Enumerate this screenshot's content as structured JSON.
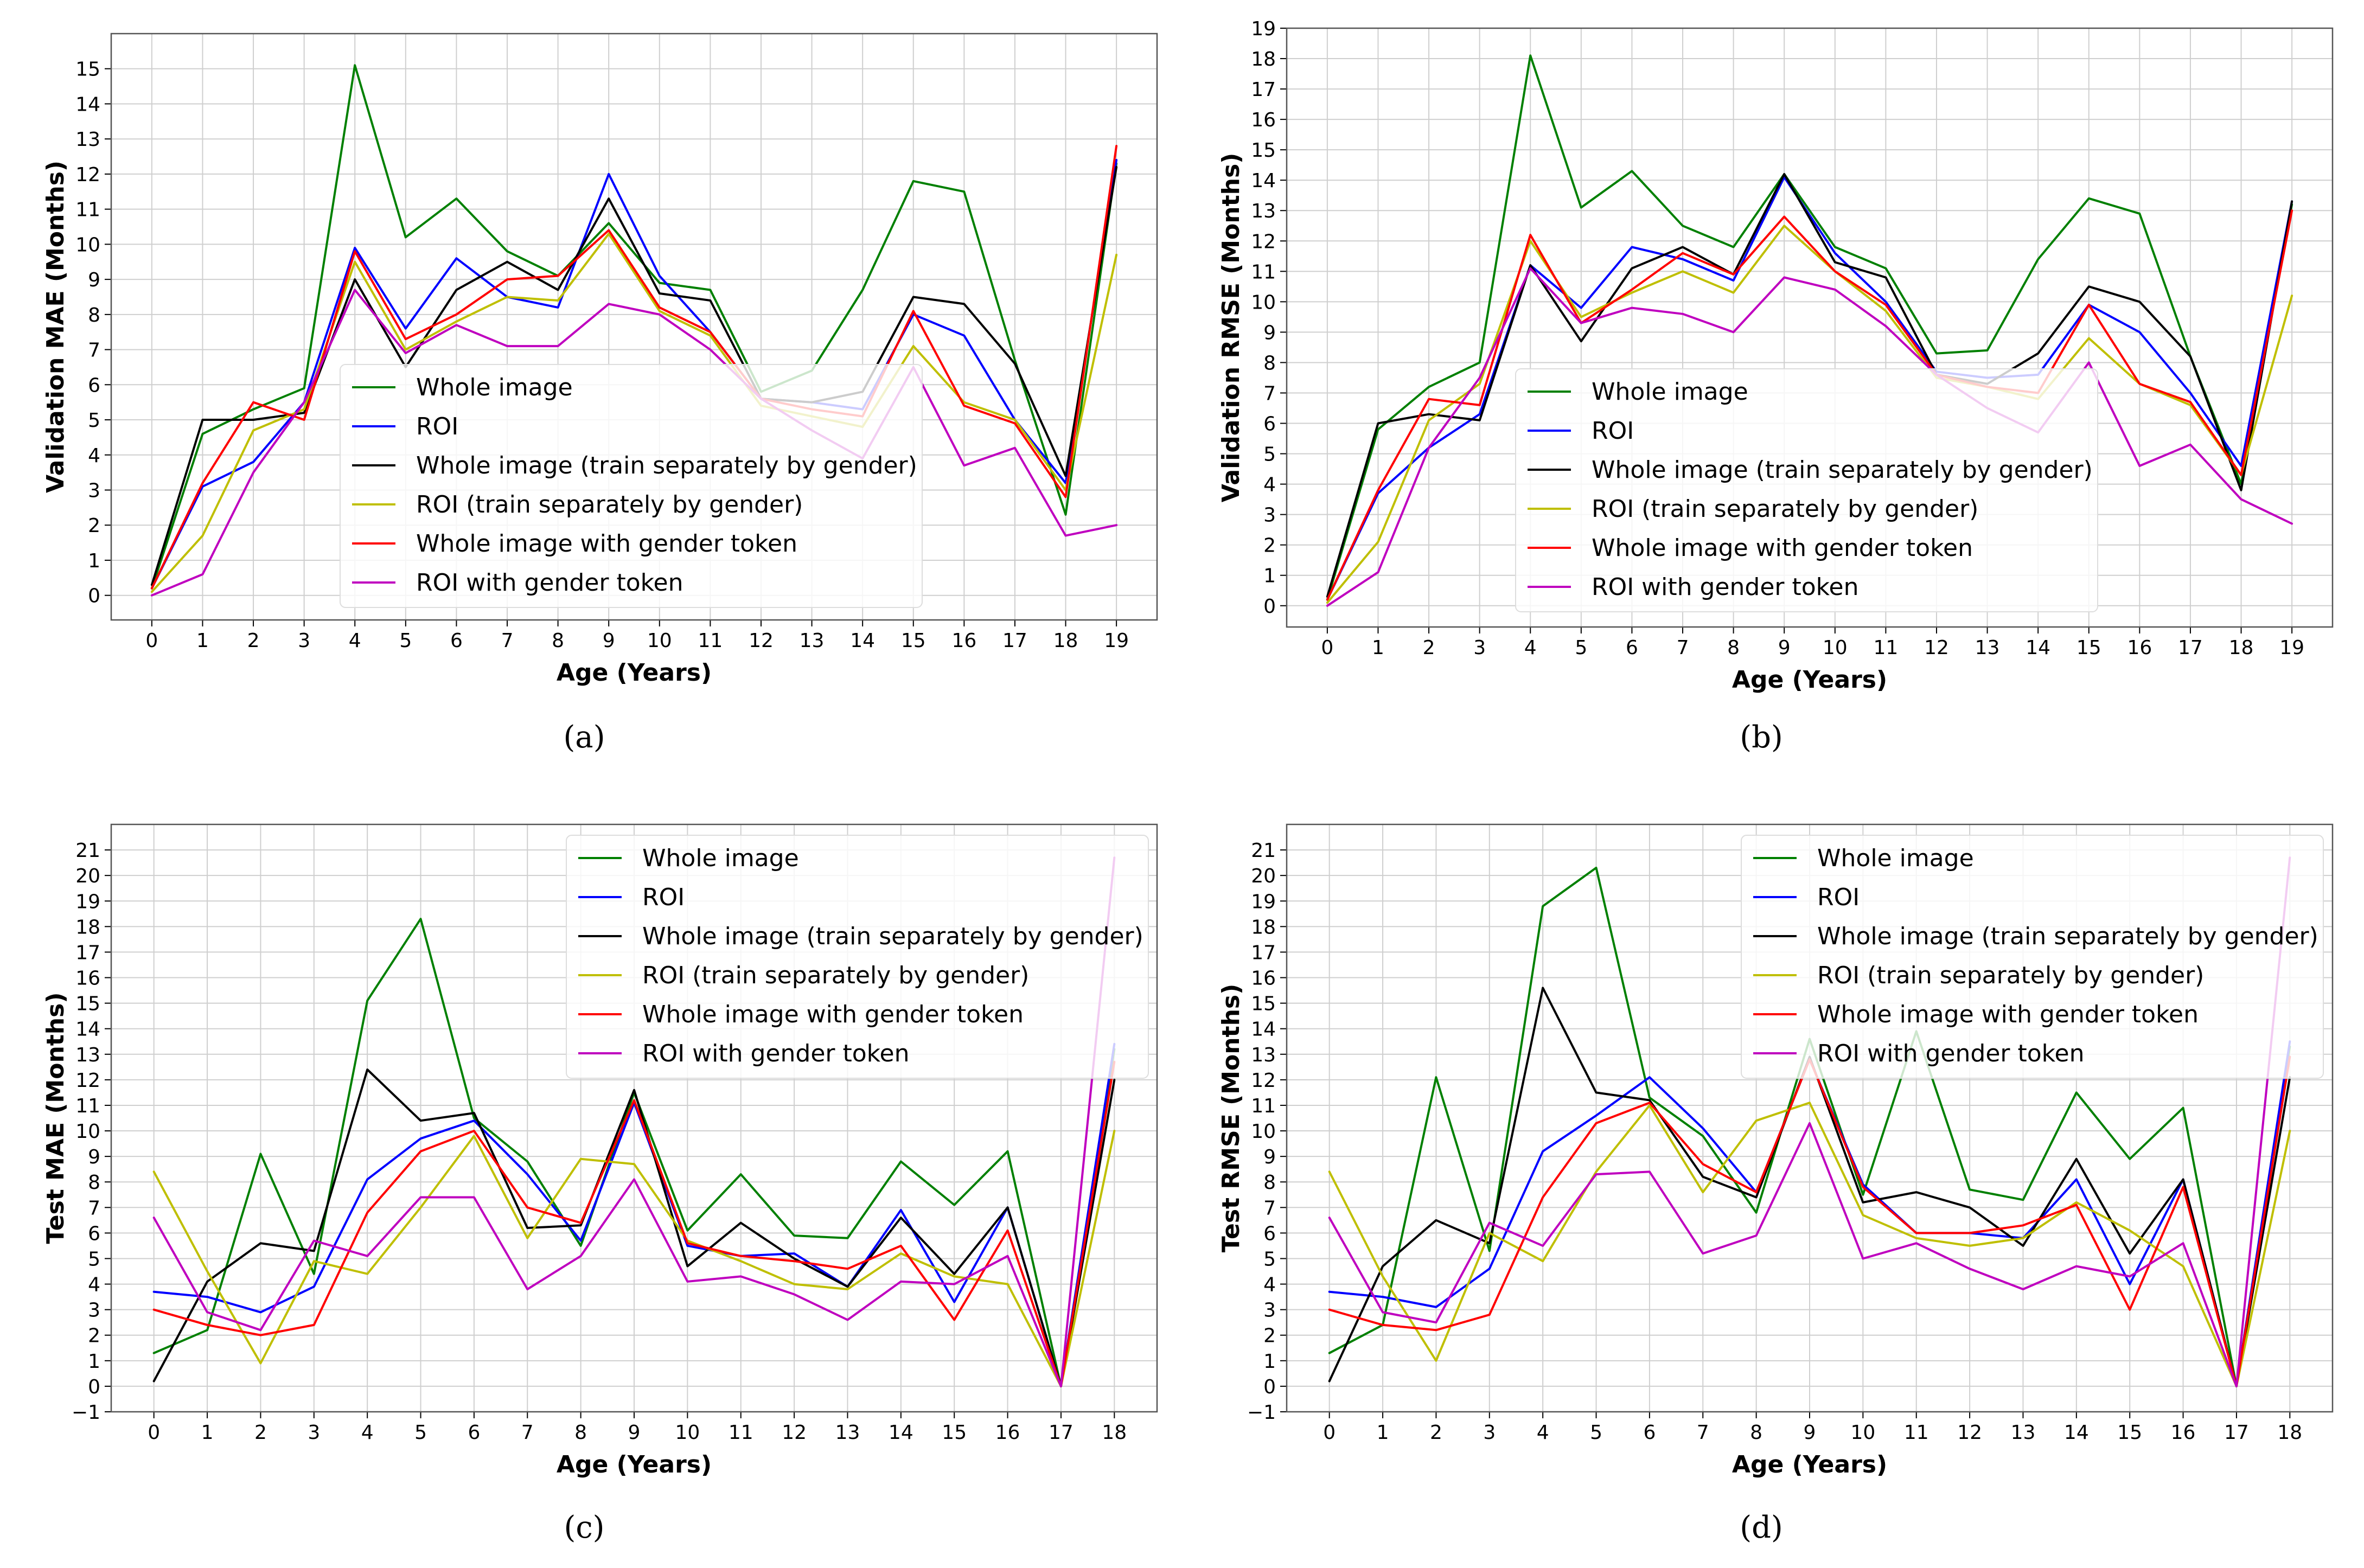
{
  "chart_data": [
    {
      "type": "line",
      "caption": "(a)",
      "xlabel": "Age (Years)",
      "ylabel": "Validation MAE (Months)",
      "x": [
        0,
        1,
        2,
        3,
        4,
        5,
        6,
        7,
        8,
        9,
        10,
        11,
        12,
        13,
        14,
        15,
        16,
        17,
        18,
        19
      ],
      "xlim": [
        -0.8,
        19.8
      ],
      "ylim": [
        -0.7,
        16
      ],
      "yticks": [
        0,
        1,
        2,
        3,
        4,
        5,
        6,
        7,
        8,
        9,
        10,
        11,
        12,
        13,
        14,
        15
      ],
      "grid": true,
      "legend": "center",
      "series": [
        {
          "name": "Whole image",
          "color": "#008000",
          "values": [
            0.2,
            4.6,
            5.3,
            5.9,
            15.1,
            10.2,
            11.3,
            9.8,
            9.1,
            10.6,
            8.9,
            8.7,
            5.8,
            6.4,
            8.7,
            11.8,
            11.5,
            6.7,
            2.3,
            12.3
          ]
        },
        {
          "name": "ROI",
          "color": "#0000ff",
          "values": [
            0.2,
            3.1,
            3.8,
            5.5,
            9.9,
            7.6,
            9.6,
            8.5,
            8.2,
            12.0,
            9.1,
            7.5,
            5.6,
            5.5,
            5.3,
            8.0,
            7.4,
            5.0,
            3.2,
            12.4
          ]
        },
        {
          "name": "Whole image (train separately by gender)",
          "color": "#000000",
          "values": [
            0.3,
            5.0,
            5.0,
            5.2,
            9.0,
            6.5,
            8.7,
            9.5,
            8.7,
            11.3,
            8.6,
            8.4,
            5.6,
            5.5,
            5.8,
            8.5,
            8.3,
            6.6,
            3.4,
            12.2
          ]
        },
        {
          "name": "ROI (train separately by gender)",
          "color": "#bfbf00",
          "values": [
            0.1,
            1.7,
            4.7,
            5.3,
            9.5,
            7.0,
            7.8,
            8.5,
            8.4,
            10.3,
            8.1,
            7.4,
            5.4,
            5.1,
            4.8,
            7.1,
            5.5,
            5.0,
            3.0,
            9.7
          ]
        },
        {
          "name": "Whole image with gender token",
          "color": "#ff0000",
          "values": [
            0.2,
            3.2,
            5.5,
            5.0,
            9.8,
            7.3,
            8.0,
            9.0,
            9.1,
            10.4,
            8.2,
            7.5,
            5.6,
            5.3,
            5.1,
            8.1,
            5.4,
            4.9,
            2.8,
            12.8
          ]
        },
        {
          "name": "ROI with gender token",
          "color": "#bf00bf",
          "values": [
            0.0,
            0.6,
            3.5,
            5.5,
            8.7,
            6.9,
            7.7,
            7.1,
            7.1,
            8.3,
            8.0,
            7.0,
            5.6,
            4.7,
            3.9,
            6.5,
            3.7,
            4.2,
            1.7,
            2.0
          ]
        }
      ]
    },
    {
      "type": "line",
      "caption": "(b)",
      "xlabel": "Age (Years)",
      "ylabel": "Validation RMSE (Months)",
      "x": [
        0,
        1,
        2,
        3,
        4,
        5,
        6,
        7,
        8,
        9,
        10,
        11,
        12,
        13,
        14,
        15,
        16,
        17,
        18,
        19
      ],
      "xlim": [
        -0.8,
        19.8
      ],
      "ylim": [
        -0.7,
        19
      ],
      "yticks": [
        0,
        1,
        2,
        3,
        4,
        5,
        6,
        7,
        8,
        9,
        10,
        11,
        12,
        13,
        14,
        15,
        16,
        17,
        18,
        19
      ],
      "grid": true,
      "legend": "center",
      "series": [
        {
          "name": "Whole image",
          "color": "#008000",
          "values": [
            0.2,
            5.8,
            7.2,
            8.0,
            18.1,
            13.1,
            14.3,
            12.5,
            11.8,
            14.2,
            11.8,
            11.1,
            8.3,
            8.4,
            11.4,
            13.4,
            12.9,
            8.2,
            4.0,
            13.2
          ]
        },
        {
          "name": "ROI",
          "color": "#0000ff",
          "values": [
            0.2,
            3.7,
            5.2,
            6.3,
            11.2,
            9.8,
            11.8,
            11.4,
            10.7,
            14.1,
            11.6,
            10.0,
            7.7,
            7.5,
            7.6,
            9.9,
            9.0,
            7.0,
            4.6,
            13.3
          ]
        },
        {
          "name": "Whole image (train separately by gender)",
          "color": "#000000",
          "values": [
            0.3,
            6.0,
            6.3,
            6.1,
            11.2,
            8.7,
            11.1,
            11.8,
            10.9,
            14.2,
            11.3,
            10.8,
            7.6,
            7.3,
            8.3,
            10.5,
            10.0,
            8.2,
            3.8,
            13.3
          ]
        },
        {
          "name": "ROI (train separately by gender)",
          "color": "#bfbf00",
          "values": [
            0.1,
            2.1,
            6.1,
            7.3,
            12.0,
            9.5,
            10.3,
            11.0,
            10.3,
            12.5,
            11.0,
            9.7,
            7.5,
            7.2,
            6.8,
            8.8,
            7.3,
            6.6,
            4.3,
            10.2
          ]
        },
        {
          "name": "Whole image with gender token",
          "color": "#ff0000",
          "values": [
            0.2,
            3.8,
            6.8,
            6.6,
            12.2,
            9.3,
            10.4,
            11.6,
            10.9,
            12.8,
            11.0,
            9.9,
            7.6,
            7.2,
            7.0,
            9.9,
            7.3,
            6.7,
            4.3,
            13.0
          ]
        },
        {
          "name": "ROI with gender token",
          "color": "#bf00bf",
          "values": [
            0.0,
            1.1,
            5.2,
            7.5,
            11.1,
            9.3,
            9.8,
            9.6,
            9.0,
            10.8,
            10.4,
            9.2,
            7.6,
            6.5,
            5.7,
            8.0,
            4.6,
            5.3,
            3.5,
            2.7
          ]
        }
      ]
    },
    {
      "type": "line",
      "caption": "(c)",
      "xlabel": "Age (Years)",
      "ylabel": "Test MAE (Months)",
      "x": [
        0,
        1,
        2,
        3,
        4,
        5,
        6,
        7,
        8,
        9,
        10,
        11,
        12,
        13,
        14,
        15,
        16,
        17,
        18
      ],
      "xlim": [
        -0.8,
        18.8
      ],
      "ylim": [
        -1,
        22
      ],
      "yticks": [
        -1,
        0,
        1,
        2,
        3,
        4,
        5,
        6,
        7,
        8,
        9,
        10,
        11,
        12,
        13,
        14,
        15,
        16,
        17,
        18,
        19,
        20,
        21
      ],
      "grid": true,
      "legend": "top-right",
      "series": [
        {
          "name": "Whole image",
          "color": "#008000",
          "values": [
            1.3,
            2.2,
            9.1,
            4.4,
            15.1,
            18.3,
            10.5,
            8.8,
            5.5,
            11.5,
            6.1,
            8.3,
            5.9,
            5.8,
            8.8,
            7.1,
            9.2,
            0.0,
            13.2
          ]
        },
        {
          "name": "ROI",
          "color": "#0000ff",
          "values": [
            3.7,
            3.5,
            2.9,
            3.9,
            8.1,
            9.7,
            10.4,
            8.3,
            5.7,
            11.1,
            5.5,
            5.1,
            5.2,
            3.9,
            6.9,
            3.3,
            7.0,
            0.0,
            13.4
          ]
        },
        {
          "name": "Whole image (train separately by gender)",
          "color": "#000000",
          "values": [
            0.2,
            4.1,
            5.6,
            5.3,
            12.4,
            10.4,
            10.7,
            6.2,
            6.3,
            11.6,
            4.7,
            6.4,
            5.0,
            3.9,
            6.6,
            4.4,
            7.0,
            0.0,
            12.0
          ]
        },
        {
          "name": "ROI (train separately by gender)",
          "color": "#bfbf00",
          "values": [
            8.4,
            4.5,
            0.9,
            4.9,
            4.4,
            7.0,
            9.8,
            5.8,
            8.9,
            8.7,
            5.7,
            4.9,
            4.0,
            3.8,
            5.2,
            4.3,
            4.0,
            0.0,
            10.0
          ]
        },
        {
          "name": "Whole image with gender token",
          "color": "#ff0000",
          "values": [
            3.0,
            2.4,
            2.0,
            2.4,
            6.8,
            9.2,
            10.0,
            7.0,
            6.4,
            11.2,
            5.6,
            5.1,
            4.9,
            4.6,
            5.5,
            2.6,
            6.1,
            0.0,
            12.7
          ]
        },
        {
          "name": "ROI with gender token",
          "color": "#bf00bf",
          "values": [
            6.6,
            2.9,
            2.2,
            5.7,
            5.1,
            7.4,
            7.4,
            3.8,
            5.1,
            8.1,
            4.1,
            4.3,
            3.6,
            2.6,
            4.1,
            4.0,
            5.1,
            0.0,
            20.7
          ]
        }
      ]
    },
    {
      "type": "line",
      "caption": "(d)",
      "xlabel": "Age (Years)",
      "ylabel": "Test RMSE (Months)",
      "x": [
        0,
        1,
        2,
        3,
        4,
        5,
        6,
        7,
        8,
        9,
        10,
        11,
        12,
        13,
        14,
        15,
        16,
        17,
        18
      ],
      "xlim": [
        -0.8,
        18.8
      ],
      "ylim": [
        -1,
        22
      ],
      "yticks": [
        -1,
        0,
        1,
        2,
        3,
        4,
        5,
        6,
        7,
        8,
        9,
        10,
        11,
        12,
        13,
        14,
        15,
        16,
        17,
        18,
        19,
        20,
        21
      ],
      "grid": true,
      "legend": "top-right",
      "series": [
        {
          "name": "Whole image",
          "color": "#008000",
          "values": [
            1.3,
            2.4,
            12.1,
            5.3,
            18.8,
            20.3,
            11.3,
            9.8,
            6.8,
            13.6,
            7.5,
            13.9,
            7.7,
            7.3,
            11.5,
            8.9,
            10.9,
            0.0,
            13.3
          ]
        },
        {
          "name": "ROI",
          "color": "#0000ff",
          "values": [
            3.7,
            3.5,
            3.1,
            4.6,
            9.2,
            10.6,
            12.1,
            10.1,
            7.6,
            12.8,
            7.9,
            6.0,
            6.0,
            5.8,
            8.1,
            4.0,
            8.1,
            0.0,
            13.5
          ]
        },
        {
          "name": "Whole image (train separately by gender)",
          "color": "#000000",
          "values": [
            0.2,
            4.7,
            6.5,
            5.6,
            15.6,
            11.5,
            11.2,
            8.2,
            7.4,
            12.9,
            7.2,
            7.6,
            7.0,
            5.5,
            8.9,
            5.2,
            8.1,
            0.0,
            12.1
          ]
        },
        {
          "name": "ROI (train separately by gender)",
          "color": "#bfbf00",
          "values": [
            8.4,
            4.3,
            1.0,
            6.0,
            4.9,
            8.4,
            11.0,
            7.6,
            10.4,
            11.1,
            6.7,
            5.8,
            5.5,
            5.8,
            7.2,
            6.1,
            4.7,
            0.0,
            10.0
          ]
        },
        {
          "name": "Whole image with gender token",
          "color": "#ff0000",
          "values": [
            3.0,
            2.4,
            2.2,
            2.8,
            7.4,
            10.3,
            11.1,
            8.7,
            7.6,
            12.8,
            7.8,
            6.0,
            6.0,
            6.3,
            7.1,
            3.0,
            7.8,
            0.0,
            12.9
          ]
        },
        {
          "name": "ROI with gender token",
          "color": "#bf00bf",
          "values": [
            6.6,
            2.9,
            2.5,
            6.4,
            5.5,
            8.3,
            8.4,
            5.2,
            5.9,
            10.3,
            5.0,
            5.6,
            4.6,
            3.8,
            4.7,
            4.3,
            5.6,
            0.0,
            20.7
          ]
        }
      ]
    }
  ]
}
